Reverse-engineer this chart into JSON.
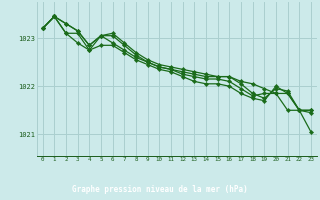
{
  "title": "Graphe pression niveau de la mer (hPa)",
  "background_color": "#cceaea",
  "grid_color": "#aacfcf",
  "line_color": "#1a6b1a",
  "bottom_bar_color": "#2d6b2d",
  "bottom_text_color": "#ffffff",
  "tick_label_color": "#1a5c1a",
  "xlim": [
    -0.5,
    23.5
  ],
  "ylim": [
    1020.55,
    1023.75
  ],
  "yticks": [
    1021,
    1022,
    1023
  ],
  "xticks": [
    0,
    1,
    2,
    3,
    4,
    5,
    6,
    7,
    8,
    9,
    10,
    11,
    12,
    13,
    14,
    15,
    16,
    17,
    18,
    19,
    20,
    21,
    22,
    23
  ],
  "lines": [
    [
      1023.2,
      1023.45,
      1023.3,
      1023.15,
      1022.85,
      1023.05,
      1023.05,
      1022.85,
      1022.65,
      1022.5,
      1022.4,
      1022.35,
      1022.3,
      1022.25,
      1022.2,
      1022.2,
      1022.2,
      1022.1,
      1022.05,
      1021.95,
      1021.85,
      1021.5,
      1021.5,
      1021.45
    ],
    [
      1023.2,
      1023.45,
      1023.3,
      1023.15,
      1022.85,
      1023.05,
      1023.1,
      1022.9,
      1022.7,
      1022.55,
      1022.45,
      1022.4,
      1022.35,
      1022.3,
      1022.25,
      1022.2,
      1022.2,
      1022.05,
      1021.85,
      1021.75,
      1021.95,
      1021.9,
      1021.5,
      1021.05
    ],
    [
      1023.2,
      1023.45,
      1023.1,
      1023.1,
      1022.75,
      1023.05,
      1022.9,
      1022.75,
      1022.6,
      1022.5,
      1022.4,
      1022.35,
      1022.25,
      1022.2,
      1022.15,
      1022.15,
      1022.1,
      1021.95,
      1021.8,
      1021.85,
      1021.85,
      1021.85,
      1021.5,
      1021.5
    ],
    [
      1023.2,
      1023.45,
      1023.1,
      1022.9,
      1022.75,
      1022.85,
      1022.85,
      1022.7,
      1022.55,
      1022.45,
      1022.35,
      1022.3,
      1022.2,
      1022.1,
      1022.05,
      1022.05,
      1022.0,
      1021.85,
      1021.75,
      1021.7,
      1022.0,
      1021.85,
      1021.5,
      1021.5
    ]
  ]
}
